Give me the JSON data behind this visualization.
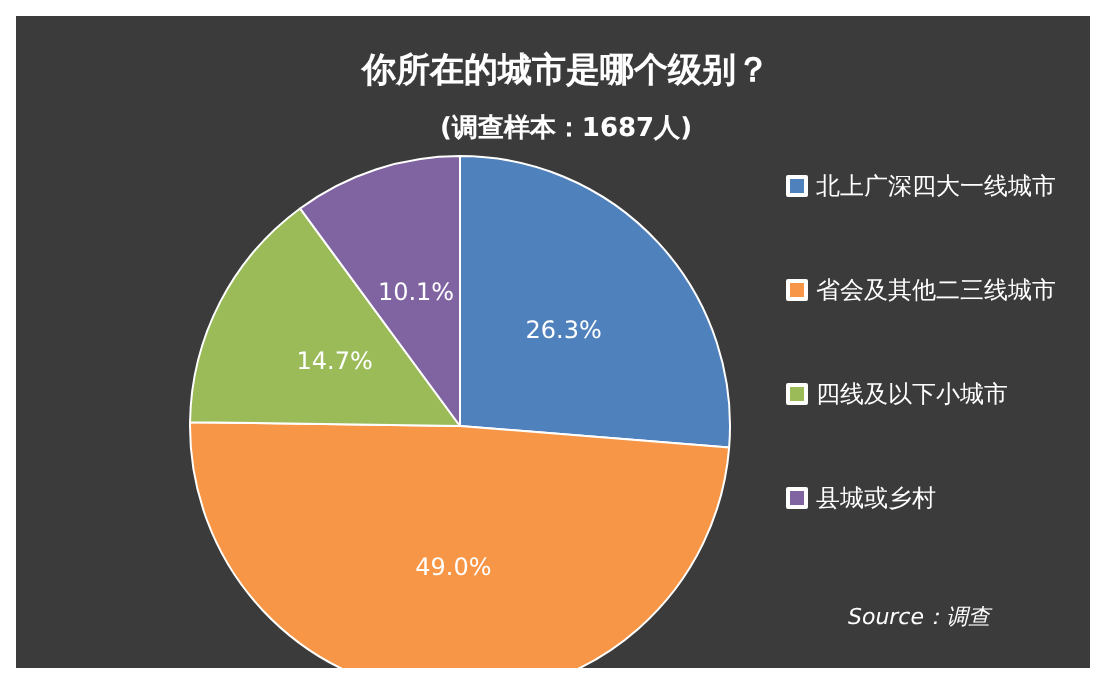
{
  "chart_data": {
    "type": "pie",
    "title": "你所在的城市是哪个级别？",
    "subtitle": "(调查样本：1687人)",
    "categories": [
      "北上广深四大一线城市",
      "省会及其他二三线城市",
      "四线及以下小城市",
      "县城或乡村"
    ],
    "values": [
      26.3,
      49.0,
      14.7,
      10.1
    ],
    "value_labels": [
      "26.3%",
      "49.0%",
      "14.7%",
      "10.1%"
    ],
    "colors": [
      "#4f81bd",
      "#f79646",
      "#9bbb59",
      "#8064a2"
    ],
    "legend": "right",
    "annotations": [
      "Source：调查"
    ]
  }
}
